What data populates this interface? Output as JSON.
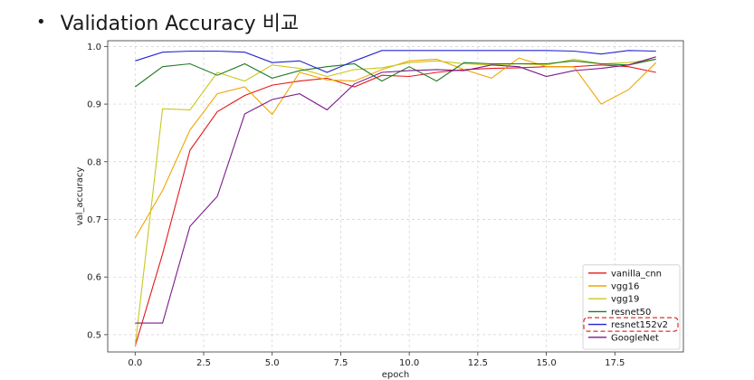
{
  "slide": {
    "bullet": "•",
    "title": "Validation Accuracy 비교"
  },
  "chart_data": {
    "type": "line",
    "title": "",
    "xlabel": "epoch",
    "ylabel": "val_accuracy",
    "xlim": [
      -1,
      20
    ],
    "ylim": [
      0.47,
      1.01
    ],
    "x_ticks": [
      0.0,
      2.5,
      5.0,
      7.5,
      10.0,
      12.5,
      15.0,
      17.5
    ],
    "x_tick_labels": [
      "0.0",
      "2.5",
      "5.0",
      "7.5",
      "10.0",
      "12.5",
      "15.0",
      "17.5"
    ],
    "y_ticks": [
      0.5,
      0.6,
      0.7,
      0.8,
      0.9,
      1.0
    ],
    "y_tick_labels": [
      "0.5",
      "0.6",
      "0.7",
      "0.8",
      "0.9",
      "1.0"
    ],
    "grid": true,
    "legend_position": "bottom-right",
    "highlighted_legend_entry": "resnet152v2",
    "highlight_color": "#e03030",
    "x": [
      0,
      1,
      2,
      3,
      4,
      5,
      6,
      7,
      8,
      9,
      10,
      11,
      12,
      13,
      14,
      15,
      16,
      17,
      18,
      19
    ],
    "series": [
      {
        "name": "vanilla_cnn",
        "color": "#e41a1c",
        "values": [
          0.48,
          0.64,
          0.82,
          0.887,
          0.915,
          0.933,
          0.94,
          0.945,
          0.93,
          0.95,
          0.948,
          0.955,
          0.96,
          0.962,
          0.963,
          0.965,
          0.965,
          0.968,
          0.965,
          0.955
        ]
      },
      {
        "name": "vgg16",
        "color": "#f0a500",
        "values": [
          0.668,
          0.75,
          0.855,
          0.918,
          0.93,
          0.882,
          0.955,
          0.942,
          0.94,
          0.96,
          0.975,
          0.978,
          0.96,
          0.945,
          0.98,
          0.965,
          0.965,
          0.9,
          0.925,
          0.972
        ]
      },
      {
        "name": "vgg19",
        "color": "#c8c81e",
        "values": [
          0.48,
          0.892,
          0.89,
          0.955,
          0.94,
          0.968,
          0.962,
          0.948,
          0.96,
          0.963,
          0.972,
          0.975,
          0.97,
          0.968,
          0.97,
          0.968,
          0.978,
          0.97,
          0.972,
          0.978
        ]
      },
      {
        "name": "resnet50",
        "color": "#1f7a1f",
        "values": [
          0.93,
          0.965,
          0.97,
          0.95,
          0.97,
          0.945,
          0.958,
          0.965,
          0.97,
          0.94,
          0.965,
          0.94,
          0.972,
          0.97,
          0.97,
          0.97,
          0.975,
          0.97,
          0.968,
          0.978
        ]
      },
      {
        "name": "resnet152v2",
        "color": "#2323d2",
        "values": [
          0.975,
          0.99,
          0.992,
          0.992,
          0.99,
          0.972,
          0.975,
          0.955,
          0.975,
          0.993,
          0.993,
          0.993,
          0.993,
          0.993,
          0.993,
          0.993,
          0.992,
          0.987,
          0.993,
          0.992
        ]
      },
      {
        "name": "GoogleNet",
        "color": "#7b1a8a",
        "values": [
          0.52,
          0.52,
          0.688,
          0.74,
          0.883,
          0.908,
          0.918,
          0.89,
          0.935,
          0.955,
          0.958,
          0.96,
          0.958,
          0.968,
          0.965,
          0.948,
          0.958,
          0.962,
          0.968,
          0.982
        ]
      }
    ]
  }
}
